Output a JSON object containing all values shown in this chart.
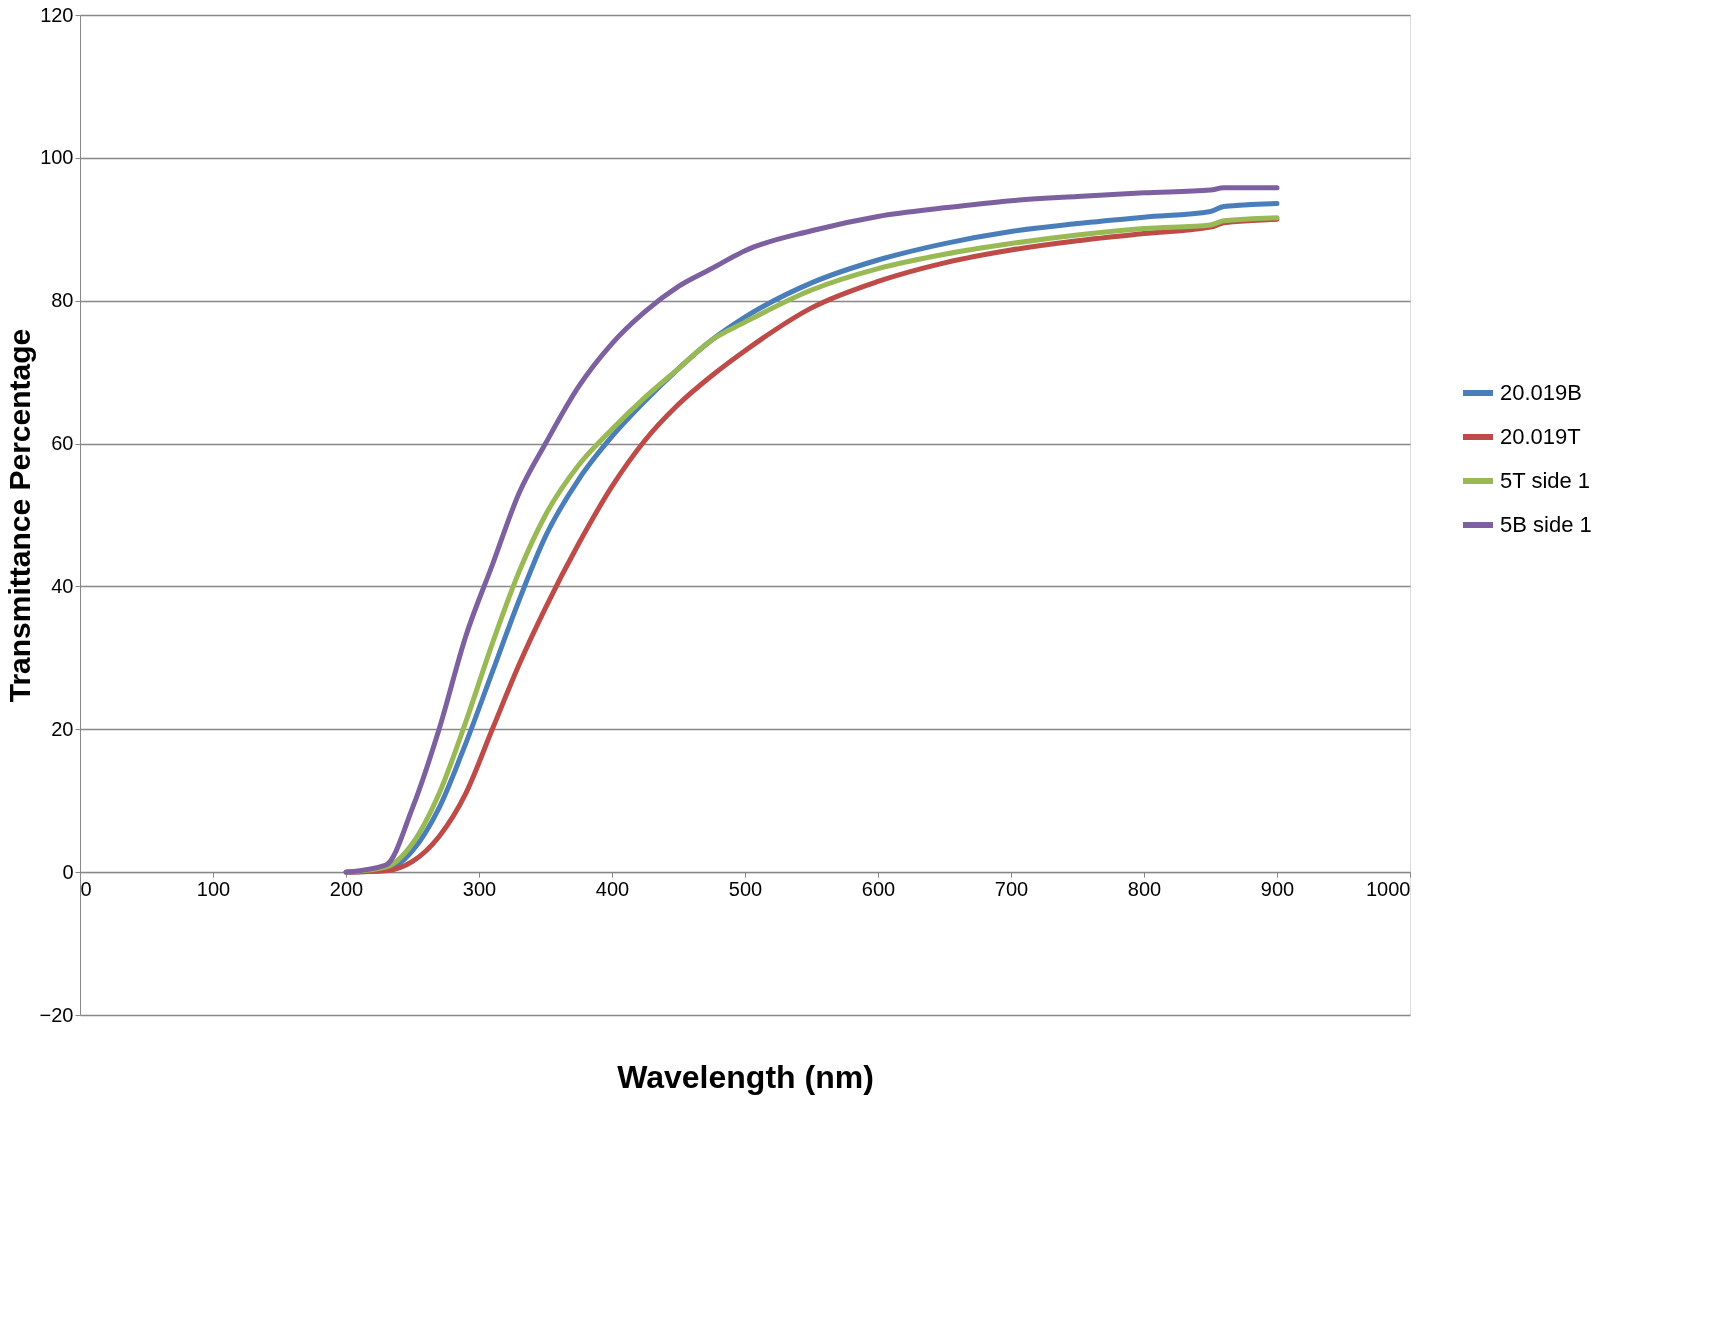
{
  "chart_data": {
    "type": "line",
    "xlabel": "Wavelength (nm)",
    "ylabel": "Transmittance Percentage",
    "xlim": [
      0,
      1000
    ],
    "xticks": [
      0,
      100,
      200,
      300,
      400,
      500,
      600,
      700,
      800,
      900,
      1000
    ],
    "ylim": [
      -20,
      120
    ],
    "yticks": [
      -20,
      0,
      20,
      40,
      60,
      80,
      100,
      120
    ],
    "grid": "y",
    "legend": "right",
    "marker": "none",
    "line_style": "solid",
    "x": [
      200,
      230,
      250,
      270,
      290,
      310,
      330,
      350,
      375,
      400,
      425,
      450,
      475,
      500,
      550,
      600,
      650,
      700,
      750,
      800,
      850,
      860,
      900
    ],
    "series": [
      {
        "name": "20.019B",
        "color": "#4a7ebb",
        "values": [
          0,
          0.3,
          3,
          9,
          18,
          28,
          38,
          47,
          55,
          61,
          66,
          70.5,
          74.5,
          77.7,
          82.5,
          85.7,
          88,
          89.7,
          90.8,
          91.7,
          92.5,
          93.2,
          93.6
        ]
      },
      {
        "name": "20.019T",
        "color": "#be4b48",
        "values": [
          0,
          0.2,
          1.5,
          5,
          11,
          20,
          29,
          37,
          46,
          54,
          60.5,
          65.5,
          69.5,
          73,
          79,
          82.7,
          85.3,
          87.1,
          88.4,
          89.4,
          90.3,
          90.9,
          91.4
        ]
      },
      {
        "name": "5T side 1",
        "color": "#98b954",
        "values": [
          0,
          0.7,
          4,
          11,
          21,
          32,
          42,
          50,
          57,
          62,
          66.5,
          70.5,
          74.5,
          77,
          81.5,
          84.5,
          86.5,
          88,
          89.2,
          90.1,
          90.6,
          91.2,
          91.6
        ]
      },
      {
        "name": "5B side 1",
        "color": "#7d60a0",
        "values": [
          0,
          1,
          9,
          20,
          33,
          43,
          53,
          60,
          68,
          74,
          78.5,
          82,
          84.5,
          87,
          89.8,
          91.8,
          93,
          94,
          94.6,
          95.1,
          95.5,
          95.8,
          95.8
        ]
      }
    ]
  }
}
